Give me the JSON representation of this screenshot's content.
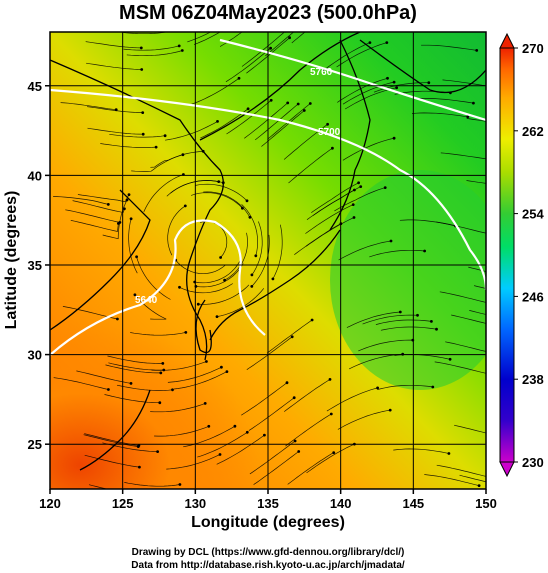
{
  "title": "MSM 06Z04May2023 (500.0hPa)",
  "xlabel": "Longitude (degrees)",
  "ylabel": "Latitude  (degrees)",
  "credits": {
    "line1": "Drawing by DCL (https://www.gfd-dennou.org/library/dcl/)",
    "line2": "Data from http://database.rish.kyoto-u.ac.jp/arch/jmadata/"
  },
  "contour_labels": [
    "5640",
    "5700",
    "5760"
  ],
  "chart_data": {
    "type": "heatmap",
    "title": "MSM 06Z04May2023 (500.0hPa)",
    "xlabel": "Longitude (degrees)",
    "ylabel": "Latitude  (degrees)",
    "xlim": [
      120,
      150
    ],
    "ylim": [
      22.5,
      48
    ],
    "xticks": [
      120,
      125,
      130,
      135,
      140,
      145,
      150
    ],
    "yticks": [
      25,
      30,
      35,
      40,
      45
    ],
    "grid": true,
    "colorbar": {
      "range": [
        230,
        270
      ],
      "ticks": [
        230,
        238,
        246,
        254,
        262,
        270
      ],
      "colors": [
        "#cc00cc",
        "#0000cc",
        "#0066ff",
        "#00ccff",
        "#00dd66",
        "#33cc33",
        "#aadd00",
        "#eeee00",
        "#ffaa00",
        "#ff6600",
        "#ee2200"
      ]
    },
    "field": "temperature (K) with streamlines and geopotential height contours",
    "contours": [
      5640,
      5700,
      5760
    ]
  }
}
